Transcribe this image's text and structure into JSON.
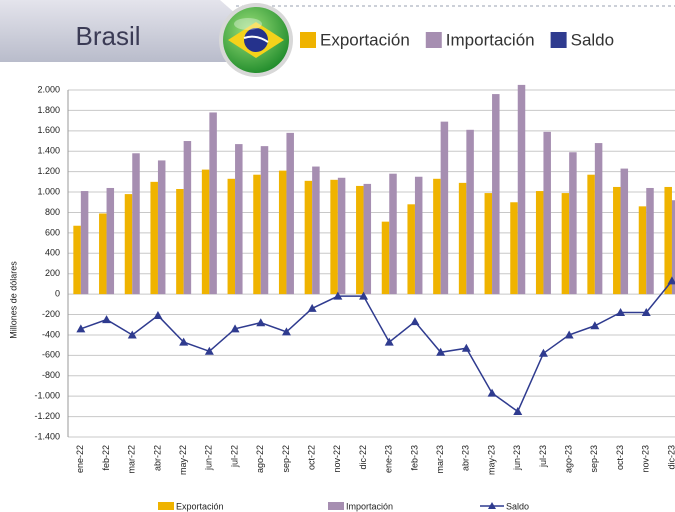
{
  "chart_data": {
    "type": "bar-line",
    "title": "Brasil",
    "y_label": "Millones de dólares",
    "categories": [
      "ene-22",
      "feb-22",
      "mar-22",
      "abr-22",
      "may-22",
      "jun-22",
      "jul-22",
      "ago-22",
      "sep-22",
      "oct-22",
      "nov-22",
      "dic-22",
      "ene-23",
      "feb-23",
      "mar-23",
      "abr-23",
      "may-23",
      "jun-23",
      "jul-23",
      "ago-23",
      "sep-23",
      "oct-23",
      "nov-23",
      "dic-23"
    ],
    "series": [
      {
        "name": "Exportación",
        "color": "#efb300",
        "kind": "bar",
        "values": [
          670,
          790,
          980,
          1100,
          1030,
          1220,
          1130,
          1170,
          1210,
          1110,
          1120,
          1060,
          710,
          880,
          1130,
          1090,
          990,
          900,
          1010,
          990,
          1170,
          1050,
          860,
          1050
        ]
      },
      {
        "name": "Importación",
        "color": "#a68eb1",
        "kind": "bar",
        "values": [
          1010,
          1040,
          1380,
          1310,
          1500,
          1780,
          1470,
          1450,
          1580,
          1250,
          1140,
          1080,
          1180,
          1150,
          1690,
          1610,
          1960,
          2050,
          1590,
          1390,
          1480,
          1230,
          1040,
          920
        ]
      },
      {
        "name": "Saldo",
        "color": "#2f3b8f",
        "kind": "line",
        "values": [
          -340,
          -250,
          -400,
          -210,
          -470,
          -560,
          -340,
          -280,
          -370,
          -140,
          -20,
          -20,
          -470,
          -270,
          -570,
          -530,
          -970,
          -1150,
          -580,
          -400,
          -310,
          -180,
          -180,
          130
        ]
      }
    ],
    "ylim": [
      -1400,
      2000
    ],
    "yticks": [
      {
        "value": -1400,
        "label": "-1.400"
      },
      {
        "value": -1200,
        "label": "-1.200"
      },
      {
        "value": -1000,
        "label": "-1.000"
      },
      -800,
      -600,
      -400,
      -200,
      0,
      200,
      400,
      600,
      800,
      {
        "value": 1000,
        "label": "1.000"
      },
      {
        "value": 1200,
        "label": "1.200"
      },
      {
        "value": 1400,
        "label": "1.400"
      },
      {
        "value": 1600,
        "label": "1.600"
      },
      {
        "value": 1800,
        "label": "1.800"
      },
      {
        "value": 2000,
        "label": "2.000"
      }
    ],
    "grid": true
  }
}
